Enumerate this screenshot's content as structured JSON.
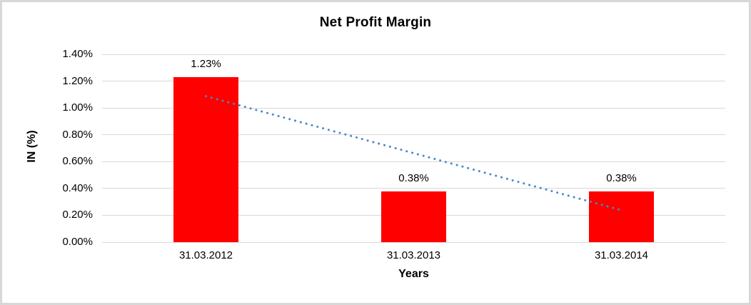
{
  "chart_data": {
    "type": "bar",
    "title": "Net Profit Margin",
    "xlabel": "Years",
    "ylabel": "IN (%)",
    "categories": [
      "31.03.2012",
      "31.03.2013",
      "31.03.2014"
    ],
    "values": [
      1.23,
      0.38,
      0.38
    ],
    "data_labels": [
      "1.23%",
      "0.38%",
      "0.38%"
    ],
    "y_ticks": [
      "0.00%",
      "0.20%",
      "0.40%",
      "0.60%",
      "0.80%",
      "1.00%",
      "1.20%",
      "1.40%"
    ],
    "ylim": [
      0,
      1.4
    ],
    "grid": true,
    "legend": "none",
    "bar_color": "#ff0000",
    "gridline_color": "#d9d9d9",
    "border_color": "#d8d8d8",
    "text_color": "#000000",
    "trendline": {
      "type": "linear",
      "style": "dotted",
      "color": "#4c87c5",
      "start_value": 1.088,
      "end_value": 0.238
    }
  }
}
